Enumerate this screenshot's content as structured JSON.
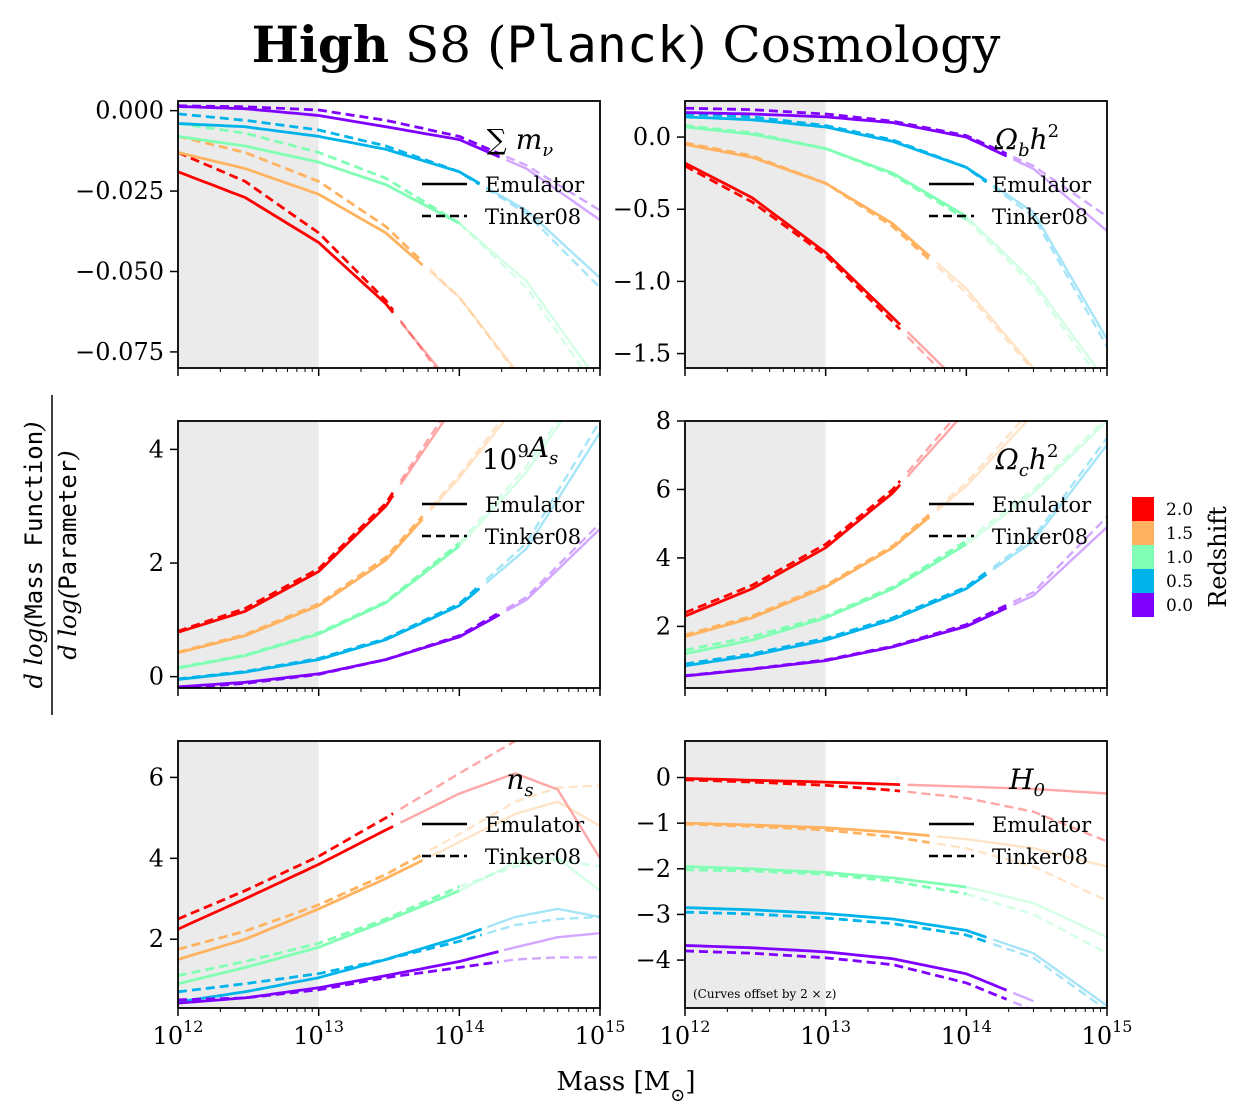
{
  "figure": {
    "title_bold": "High",
    "title_mid": " S8 (",
    "title_mono": "Planck",
    "title_end": ") Cosmology",
    "xlabel": "Mass [M",
    "xlabel_sub": "⊙",
    "xlabel_end": "]",
    "ylabel_top_pre": "d log(",
    "ylabel_top_mono": "Mass Function",
    "ylabel_top_post": ")",
    "ylabel_bot_pre": "d log(",
    "ylabel_bot_mono": "Parameter",
    "ylabel_bot_post": ")",
    "legend_solid": "Emulator",
    "legend_dashed": "Tinker08",
    "note": "(Curves offset by 2 × z)",
    "x_ticks": [
      "10^12",
      "10^13",
      "10^14",
      "10^15"
    ],
    "colorbar": {
      "label": "Redshift",
      "levels": [
        "2.0",
        "1.5",
        "1.0",
        "0.5",
        "0.0"
      ],
      "colors": [
        "#ff0000",
        "#ffb360",
        "#80ffb4",
        "#00b4eb",
        "#8000ff"
      ]
    }
  },
  "chart_data": [
    {
      "type": "line",
      "panel": "sum_mnu",
      "label": "Σ m_ν",
      "xlabel": "Mass [M⊙]",
      "xlim": [
        1000000000000.0,
        1000000000000000.0
      ],
      "xscale": "log",
      "ylim": [
        -0.08,
        0.003
      ],
      "yticks": [
        0.0,
        -0.025,
        -0.05,
        -0.075
      ],
      "ytick_labels": [
        "0.000",
        "−0.025",
        "−0.050",
        "−0.075"
      ],
      "shaded_region": [
        1000000000000.0,
        10000000000000.0
      ],
      "x": [
        1000000000000.0,
        3000000000000.0,
        10000000000000.0,
        30000000000000.0,
        100000000000000.0,
        300000000000000.0,
        1000000000000000.0
      ],
      "series": [
        {
          "z": 2.0,
          "emulator": [
            -0.019,
            -0.027,
            -0.041,
            -0.06,
            -0.088,
            null,
            null
          ],
          "tinker08": [
            -0.013,
            -0.022,
            -0.038,
            -0.059,
            -0.09,
            null,
            null
          ],
          "solid_until": 35000000000000.0
        },
        {
          "z": 1.5,
          "emulator": [
            -0.013,
            -0.018,
            -0.026,
            -0.038,
            -0.058,
            -0.085,
            null
          ],
          "tinker08": [
            -0.008,
            -0.013,
            -0.022,
            -0.036,
            -0.058,
            -0.086,
            null
          ],
          "solid_until": 60000000000000.0
        },
        {
          "z": 1.0,
          "emulator": [
            -0.008,
            -0.011,
            -0.016,
            -0.023,
            -0.035,
            -0.053,
            -0.085
          ],
          "tinker08": [
            -0.004,
            -0.007,
            -0.013,
            -0.021,
            -0.035,
            -0.055,
            -0.088
          ],
          "solid_until": 100000000000000.0
        },
        {
          "z": 0.5,
          "emulator": [
            -0.004,
            -0.005,
            -0.008,
            -0.012,
            -0.019,
            -0.031,
            -0.052
          ],
          "tinker08": [
            -0.001,
            -0.003,
            -0.006,
            -0.011,
            -0.019,
            -0.032,
            -0.055
          ],
          "solid_until": 150000000000000.0
        },
        {
          "z": 0.0,
          "emulator": [
            0.0013,
            0.0006,
            -0.0015,
            -0.005,
            -0.009,
            -0.018,
            -0.034
          ],
          "tinker08": [
            0.0015,
            0.0012,
            0.0002,
            -0.003,
            -0.008,
            -0.017,
            -0.031
          ],
          "solid_until": 200000000000000.0
        }
      ]
    },
    {
      "type": "line",
      "panel": "Omega_b_h2",
      "label": "Ω_b h²",
      "xlabel": "Mass [M⊙]",
      "xlim": [
        1000000000000.0,
        1000000000000000.0
      ],
      "xscale": "log",
      "ylim": [
        -1.6,
        0.25
      ],
      "yticks": [
        0.0,
        -0.5,
        -1.0,
        -1.5
      ],
      "ytick_labels": [
        "0.0",
        "−0.5",
        "−1.0",
        "−1.5"
      ],
      "shaded_region": [
        1000000000000.0,
        10000000000000.0
      ],
      "x": [
        1000000000000.0,
        3000000000000.0,
        10000000000000.0,
        30000000000000.0,
        100000000000000.0,
        300000000000000.0,
        1000000000000000.0
      ],
      "series": [
        {
          "z": 2.0,
          "emulator": [
            -0.18,
            -0.42,
            -0.8,
            -1.25,
            -1.75,
            null,
            null
          ],
          "tinker08": [
            -0.2,
            -0.45,
            -0.82,
            -1.28,
            -1.8,
            null,
            null
          ],
          "solid_until": 35000000000000.0
        },
        {
          "z": 1.5,
          "emulator": [
            -0.05,
            -0.14,
            -0.32,
            -0.6,
            -1.05,
            -1.6,
            null
          ],
          "tinker08": [
            -0.04,
            -0.13,
            -0.32,
            -0.62,
            -1.08,
            -1.62,
            null
          ],
          "solid_until": 60000000000000.0
        },
        {
          "z": 1.0,
          "emulator": [
            0.07,
            0.02,
            -0.08,
            -0.25,
            -0.55,
            -1.0,
            -1.7
          ],
          "tinker08": [
            0.08,
            0.03,
            -0.08,
            -0.26,
            -0.57,
            -1.03,
            -1.75
          ],
          "solid_until": 100000000000000.0
        },
        {
          "z": 0.5,
          "emulator": [
            0.14,
            0.12,
            0.07,
            -0.03,
            -0.21,
            -0.52,
            -1.4
          ],
          "tinker08": [
            0.16,
            0.14,
            0.08,
            -0.02,
            -0.21,
            -0.55,
            -1.45
          ],
          "solid_until": 150000000000000.0
        },
        {
          "z": 0.0,
          "emulator": [
            0.17,
            0.16,
            0.14,
            0.1,
            0.0,
            -0.22,
            -0.65
          ],
          "tinker08": [
            0.2,
            0.19,
            0.16,
            0.11,
            0.01,
            -0.2,
            -0.55
          ],
          "solid_until": 200000000000000.0
        }
      ]
    },
    {
      "type": "line",
      "panel": "1e9_As",
      "label": "10⁹ A_s",
      "xlabel": "Mass [M⊙]",
      "xlim": [
        1000000000000.0,
        1000000000000000.0
      ],
      "xscale": "log",
      "ylim": [
        -0.2,
        4.5
      ],
      "yticks": [
        0,
        2,
        4
      ],
      "ytick_labels": [
        "0",
        "2",
        "4"
      ],
      "shaded_region": [
        1000000000000.0,
        10000000000000.0
      ],
      "x": [
        1000000000000.0,
        3000000000000.0,
        10000000000000.0,
        30000000000000.0,
        100000000000000.0,
        300000000000000.0,
        1000000000000000.0
      ],
      "series": [
        {
          "z": 2.0,
          "emulator": [
            0.78,
            1.15,
            1.85,
            3.0,
            4.9,
            null,
            null
          ],
          "tinker08": [
            0.8,
            1.2,
            1.9,
            3.05,
            5.0,
            null,
            null
          ],
          "solid_until": 35000000000000.0
        },
        {
          "z": 1.5,
          "emulator": [
            0.42,
            0.72,
            1.25,
            2.05,
            3.5,
            5.0,
            null
          ],
          "tinker08": [
            0.43,
            0.74,
            1.28,
            2.1,
            3.55,
            5.1,
            null
          ],
          "solid_until": 60000000000000.0
        },
        {
          "z": 1.0,
          "emulator": [
            0.15,
            0.37,
            0.75,
            1.3,
            2.3,
            3.6,
            5.5
          ],
          "tinker08": [
            0.16,
            0.38,
            0.77,
            1.32,
            2.35,
            3.7,
            5.6
          ],
          "solid_until": 100000000000000.0
        },
        {
          "z": 0.5,
          "emulator": [
            -0.05,
            0.08,
            0.3,
            0.65,
            1.25,
            2.25,
            4.3
          ],
          "tinker08": [
            -0.04,
            0.09,
            0.32,
            0.67,
            1.28,
            2.35,
            4.5
          ],
          "solid_until": 150000000000000.0
        },
        {
          "z": 0.0,
          "emulator": [
            -0.18,
            -0.1,
            0.05,
            0.3,
            0.7,
            1.35,
            2.6
          ],
          "tinker08": [
            -0.2,
            -0.12,
            0.04,
            0.3,
            0.72,
            1.4,
            2.7
          ],
          "solid_until": 200000000000000.0
        }
      ]
    },
    {
      "type": "line",
      "panel": "Omega_c_h2",
      "label": "Ω_c h²",
      "xlabel": "Mass [M⊙]",
      "xlim": [
        1000000000000.0,
        1000000000000000.0
      ],
      "xscale": "log",
      "ylim": [
        0.2,
        8.0
      ],
      "yticks": [
        2,
        4,
        6,
        8
      ],
      "ytick_labels": [
        "2",
        "4",
        "6",
        "8"
      ],
      "shaded_region": [
        1000000000000.0,
        10000000000000.0
      ],
      "x": [
        1000000000000.0,
        3000000000000.0,
        10000000000000.0,
        30000000000000.0,
        100000000000000.0,
        300000000000000.0,
        1000000000000000.0
      ],
      "series": [
        {
          "z": 2.0,
          "emulator": [
            2.3,
            3.1,
            4.3,
            5.9,
            8.3,
            null,
            null
          ],
          "tinker08": [
            2.4,
            3.2,
            4.4,
            6.0,
            8.5,
            null,
            null
          ],
          "solid_until": 35000000000000.0
        },
        {
          "z": 1.5,
          "emulator": [
            1.7,
            2.25,
            3.15,
            4.3,
            6.1,
            8.2,
            null
          ],
          "tinker08": [
            1.75,
            2.3,
            3.2,
            4.35,
            6.2,
            8.4,
            null
          ],
          "solid_until": 60000000000000.0
        },
        {
          "z": 1.0,
          "emulator": [
            1.2,
            1.6,
            2.25,
            3.1,
            4.4,
            5.9,
            8.0
          ],
          "tinker08": [
            1.3,
            1.7,
            2.3,
            3.15,
            4.5,
            6.0,
            8.1
          ],
          "solid_until": 100000000000000.0
        },
        {
          "z": 0.5,
          "emulator": [
            0.85,
            1.15,
            1.6,
            2.2,
            3.1,
            4.5,
            7.3
          ],
          "tinker08": [
            0.9,
            1.2,
            1.65,
            2.25,
            3.15,
            4.6,
            7.5
          ],
          "solid_until": 150000000000000.0
        },
        {
          "z": 0.0,
          "emulator": [
            0.55,
            0.75,
            1.0,
            1.4,
            2.0,
            2.9,
            4.9
          ],
          "tinker08": [
            0.56,
            0.76,
            1.02,
            1.42,
            2.05,
            3.0,
            5.2
          ],
          "solid_until": 200000000000000.0
        }
      ]
    },
    {
      "type": "line",
      "panel": "n_s",
      "label": "n_s",
      "xlabel": "Mass [M⊙]",
      "xlim": [
        1000000000000.0,
        1000000000000000.0
      ],
      "xscale": "log",
      "ylim": [
        0.3,
        6.9
      ],
      "yticks": [
        2,
        4,
        6
      ],
      "ytick_labels": [
        "2",
        "4",
        "6"
      ],
      "shaded_region": [
        1000000000000.0,
        10000000000000.0
      ],
      "x": [
        1000000000000.0,
        3000000000000.0,
        10000000000000.0,
        30000000000000.0,
        100000000000000.0,
        250000000000000.0,
        500000000000000.0,
        1000000000000000.0
      ],
      "series": [
        {
          "z": 2.0,
          "emulator": [
            2.25,
            3.0,
            3.85,
            4.7,
            5.6,
            6.1,
            5.7,
            4.0
          ],
          "tinker08": [
            2.5,
            3.2,
            4.05,
            5.0,
            6.1,
            6.9,
            null,
            null
          ],
          "solid_until": 35000000000000.0
        },
        {
          "z": 1.5,
          "emulator": [
            1.5,
            2.0,
            2.75,
            3.5,
            4.4,
            5.1,
            5.4,
            4.8
          ],
          "tinker08": [
            1.75,
            2.2,
            2.85,
            3.6,
            4.6,
            5.4,
            5.75,
            5.8
          ],
          "solid_until": 60000000000000.0
        },
        {
          "z": 1.0,
          "emulator": [
            0.9,
            1.3,
            1.8,
            2.45,
            3.2,
            3.9,
            4.0,
            3.2
          ],
          "tinker08": [
            1.1,
            1.45,
            1.9,
            2.5,
            3.3,
            3.8,
            3.95,
            3.8
          ],
          "solid_until": 100000000000000.0
        },
        {
          "z": 0.5,
          "emulator": [
            0.45,
            0.7,
            1.05,
            1.5,
            2.05,
            2.55,
            2.75,
            2.55
          ],
          "tinker08": [
            0.7,
            0.9,
            1.15,
            1.5,
            1.95,
            2.35,
            2.5,
            2.55
          ],
          "solid_until": 150000000000000.0
        },
        {
          "z": 0.0,
          "emulator": [
            0.42,
            0.55,
            0.8,
            1.1,
            1.45,
            1.8,
            2.05,
            2.15
          ],
          "tinker08": [
            0.5,
            0.55,
            0.75,
            1.05,
            1.3,
            1.5,
            1.55,
            1.55
          ],
          "solid_until": 200000000000000.0
        }
      ]
    },
    {
      "type": "line",
      "panel": "H0",
      "label": "H_0",
      "xlabel": "Mass [M⊙]",
      "xlim": [
        1000000000000.0,
        1000000000000000.0
      ],
      "xscale": "log",
      "ylim": [
        -5.05,
        0.8
      ],
      "yticks": [
        0,
        -1,
        -2,
        -3,
        -4
      ],
      "ytick_labels": [
        "0",
        "−1",
        "−2",
        "−3",
        "−4"
      ],
      "shaded_region": [
        1000000000000.0,
        10000000000000.0
      ],
      "x": [
        1000000000000.0,
        3000000000000.0,
        10000000000000.0,
        30000000000000.0,
        100000000000000.0,
        300000000000000.0,
        1000000000000000.0
      ],
      "series": [
        {
          "z": 2.0,
          "emulator": [
            -0.02,
            -0.06,
            -0.1,
            -0.15,
            -0.2,
            -0.25,
            -0.35
          ],
          "tinker08": [
            -0.05,
            -0.1,
            -0.17,
            -0.28,
            -0.45,
            -0.75,
            -1.4
          ],
          "solid_until": 35000000000000.0
        },
        {
          "z": 1.5,
          "emulator": [
            -1.0,
            -1.04,
            -1.1,
            -1.2,
            -1.35,
            -1.55,
            -1.95
          ],
          "tinker08": [
            -1.02,
            -1.07,
            -1.15,
            -1.3,
            -1.55,
            -1.95,
            -2.7
          ],
          "solid_until": 60000000000000.0
        },
        {
          "z": 1.0,
          "emulator": [
            -1.95,
            -2.0,
            -2.08,
            -2.2,
            -2.4,
            -2.75,
            -3.5
          ],
          "tinker08": [
            -2.02,
            -2.05,
            -2.12,
            -2.27,
            -2.55,
            -3.0,
            -3.85
          ],
          "solid_until": 100000000000000.0
        },
        {
          "z": 0.5,
          "emulator": [
            -2.85,
            -2.9,
            -2.98,
            -3.1,
            -3.35,
            -3.85,
            -5.0
          ],
          "tinker08": [
            -2.95,
            -2.99,
            -3.08,
            -3.2,
            -3.45,
            -3.95,
            -5.1
          ],
          "solid_until": 150000000000000.0
        },
        {
          "z": 0.0,
          "emulator": [
            -3.68,
            -3.73,
            -3.82,
            -3.97,
            -4.3,
            -4.9,
            null
          ],
          "tinker08": [
            -3.8,
            -3.85,
            -3.95,
            -4.1,
            -4.5,
            -5.1,
            null
          ],
          "solid_until": 200000000000000.0
        }
      ]
    }
  ]
}
